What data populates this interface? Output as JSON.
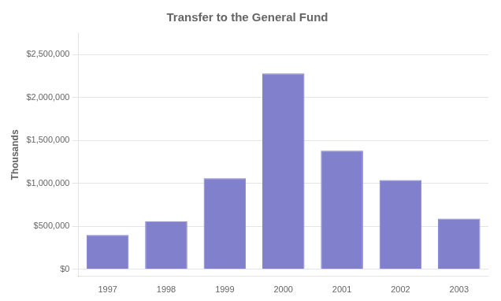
{
  "chart_data": {
    "type": "bar",
    "title": "Transfer to the General Fund",
    "ylabel": "Thousands",
    "categories": [
      "1997",
      "1998",
      "1999",
      "2000",
      "2001",
      "2002",
      "2003"
    ],
    "values": [
      400000,
      560000,
      1060000,
      2280000,
      1380000,
      1040000,
      590000
    ],
    "color": "#8080cc",
    "ylim": [
      -82500,
      2750000
    ],
    "yticks": [
      {
        "value": 0,
        "label": "$0"
      },
      {
        "value": 500000,
        "label": "$500,000"
      },
      {
        "value": 1000000,
        "label": "$1,000,000"
      },
      {
        "value": 1500000,
        "label": "$1,500,000"
      },
      {
        "value": 2000000,
        "label": "$2,000,000"
      },
      {
        "value": 2500000,
        "label": "$2,500,000"
      }
    ],
    "grid": true
  }
}
